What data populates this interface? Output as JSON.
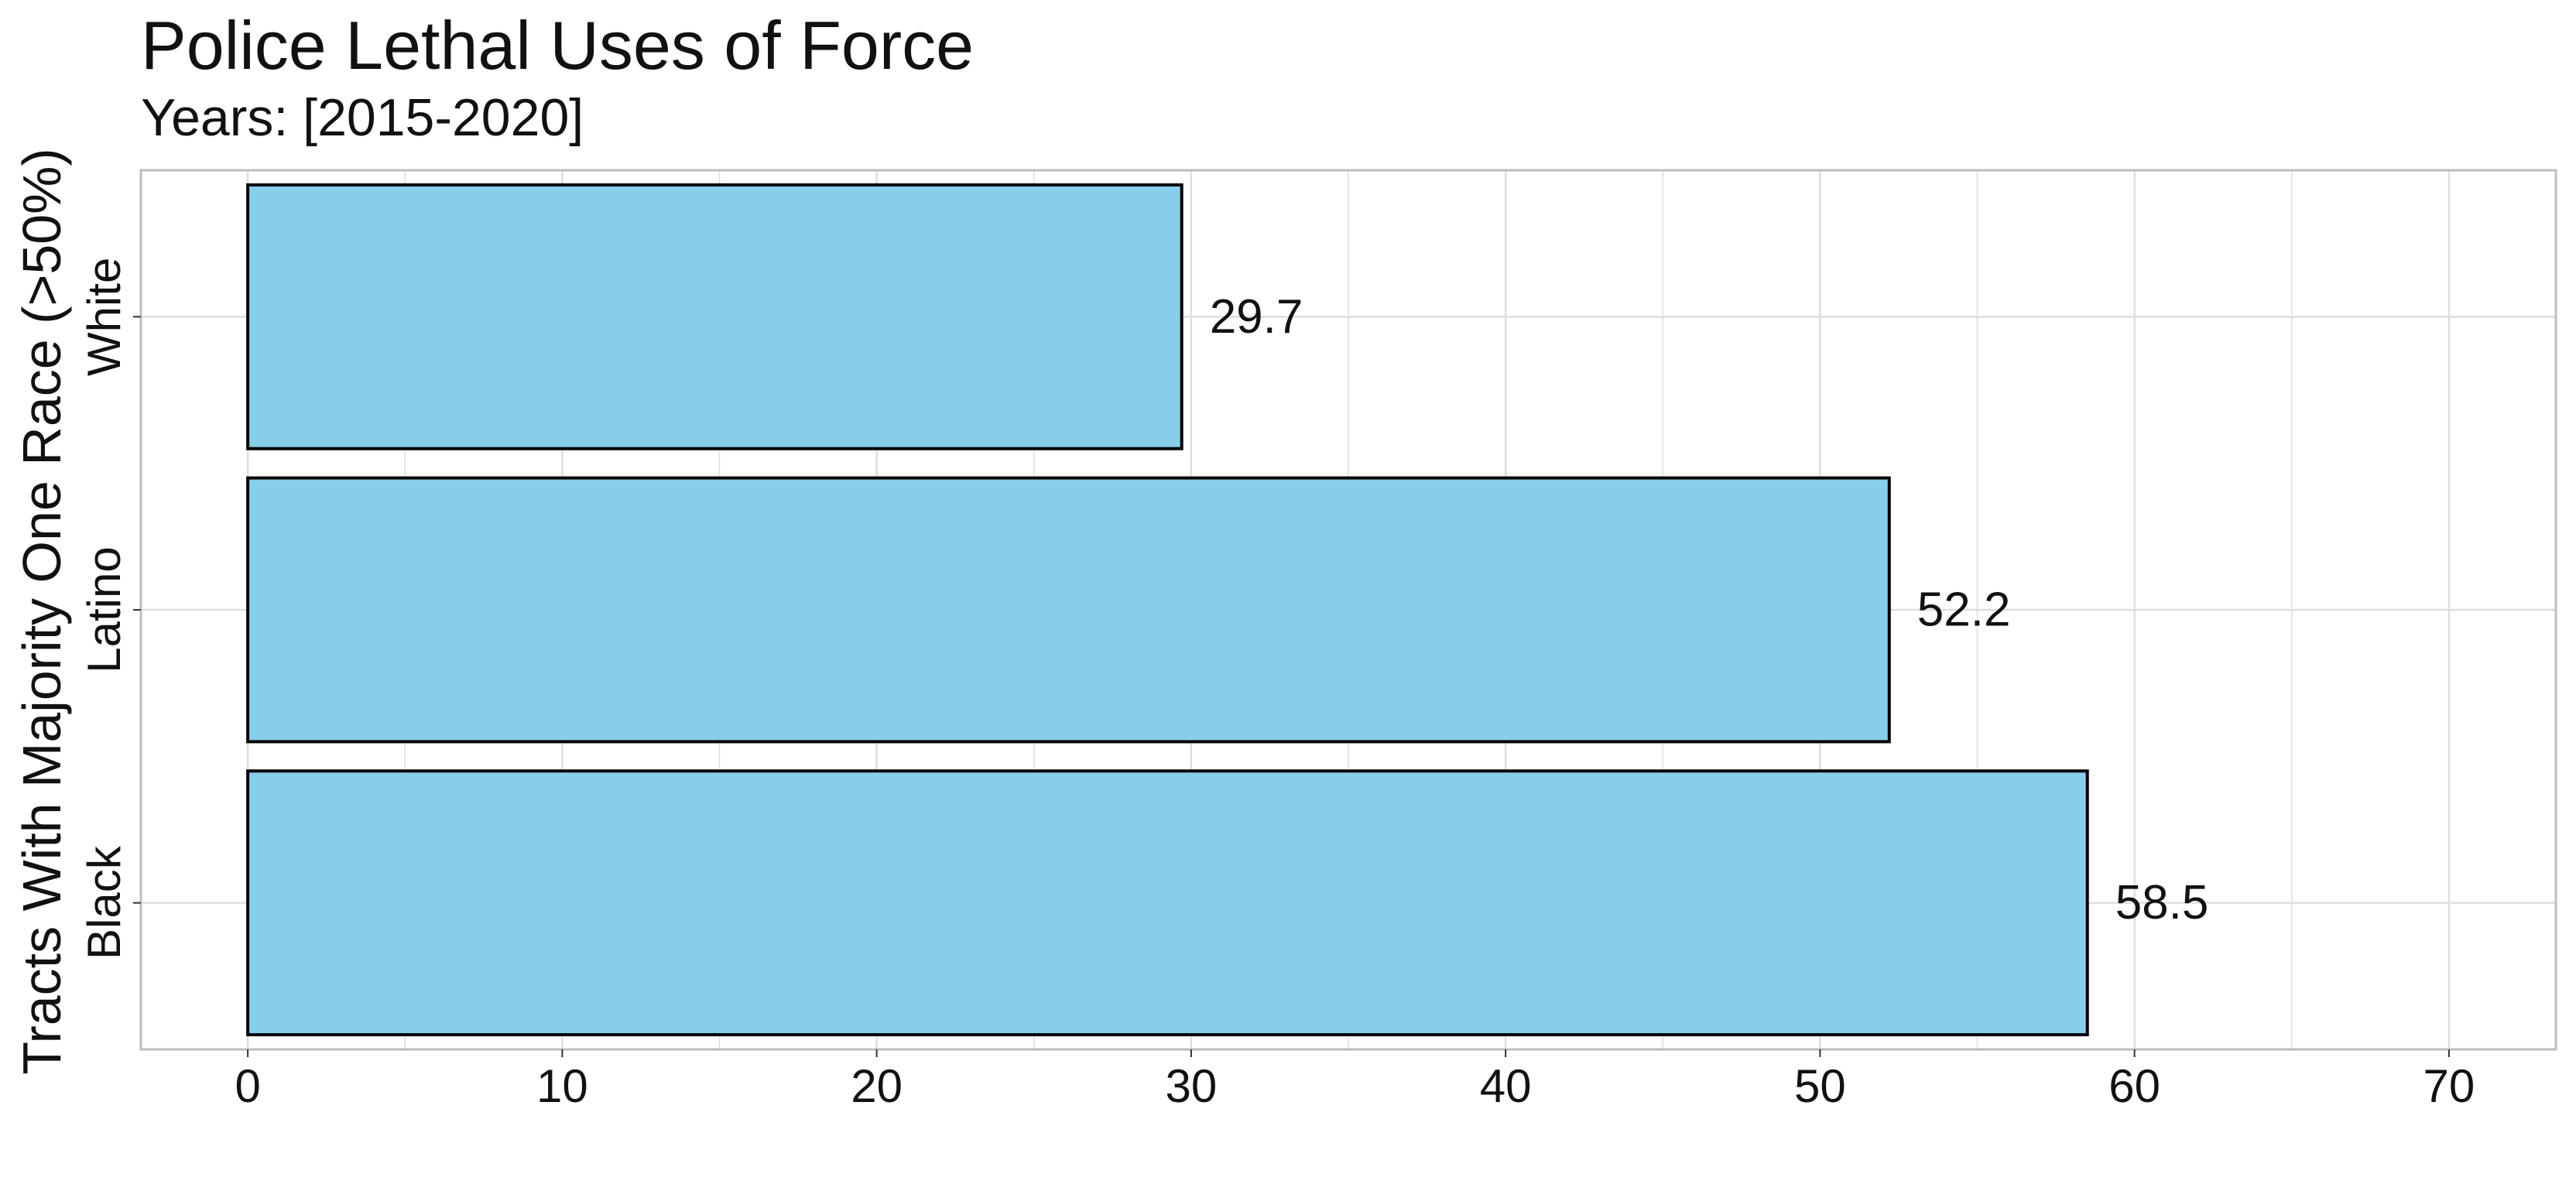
{
  "chart_data": {
    "type": "bar",
    "orientation": "horizontal",
    "title": "Police Lethal Uses of Force",
    "subtitle": "Years: [2015-2020]",
    "xlabel": "",
    "ylabel": "Tracts With Majority One Race (>50%)",
    "categories": [
      "White",
      "Latino",
      "Black"
    ],
    "values": [
      29.7,
      52.2,
      58.5
    ],
    "data_labels": [
      "29.7",
      "52.2",
      "58.5"
    ],
    "xlim": [
      -3.4,
      73.4
    ],
    "xticks": [
      0,
      10,
      20,
      30,
      40,
      50,
      60,
      70
    ],
    "xtick_labels": [
      "0",
      "10",
      "20",
      "30",
      "40",
      "50",
      "60",
      "70"
    ],
    "grid": true,
    "legend": "none",
    "colors": {
      "bar_fill": "#87CEEB",
      "bar_stroke": "#000000",
      "grid": "#dedede",
      "panel_border": "#bdbdbd"
    }
  }
}
